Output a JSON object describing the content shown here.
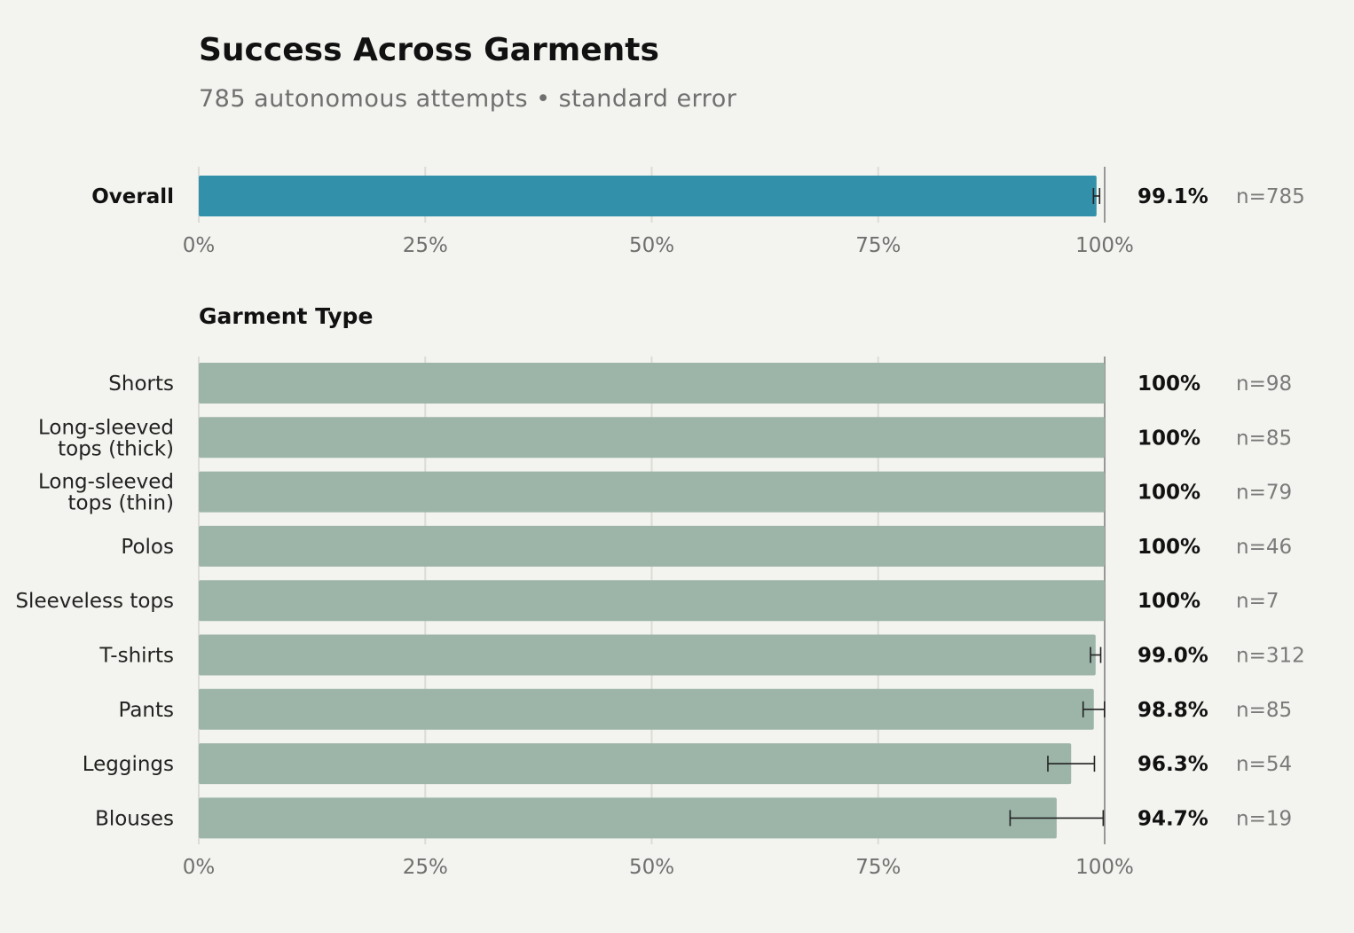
{
  "title": "Success Across Garments",
  "subtitle": "785 autonomous attempts • standard error",
  "colors": {
    "overall_bar": "#3390aa",
    "garment_bar": "#9db5a9",
    "grid": "#dcdcd6",
    "reference_line": "#7a7a7a",
    "error_bar": "#222222"
  },
  "chart_data": [
    {
      "type": "bar",
      "orientation": "horizontal",
      "section_label": "",
      "categories": [
        "Overall"
      ],
      "values": [
        99.1
      ],
      "error": [
        0.34
      ],
      "value_labels": [
        "99.1%"
      ],
      "n_labels": [
        "n=785"
      ],
      "xlim": [
        0,
        100
      ],
      "x_ticks": [
        "0%",
        "25%",
        "50%",
        "75%",
        "100%"
      ],
      "grid": true
    },
    {
      "type": "bar",
      "orientation": "horizontal",
      "section_label": "Garment Type",
      "categories": [
        "Shorts",
        "Long-sleeved tops (thick)",
        "Long-sleeved tops (thin)",
        "Polos",
        "Sleeveless tops",
        "T-shirts",
        "Pants",
        "Leggings",
        "Blouses"
      ],
      "category_lines": [
        [
          "Shorts"
        ],
        [
          "Long-sleeved",
          "tops (thick)"
        ],
        [
          "Long-sleeved",
          "tops (thin)"
        ],
        [
          "Polos"
        ],
        [
          "Sleeveless tops"
        ],
        [
          "T-shirts"
        ],
        [
          "Pants"
        ],
        [
          "Leggings"
        ],
        [
          "Blouses"
        ]
      ],
      "values": [
        100,
        100,
        100,
        100,
        100,
        99.0,
        98.8,
        96.3,
        94.7
      ],
      "error": [
        0,
        0,
        0,
        0,
        0,
        0.56,
        1.18,
        2.57,
        5.14
      ],
      "value_labels": [
        "100%",
        "100%",
        "100%",
        "100%",
        "100%",
        "99.0%",
        "98.8%",
        "96.3%",
        "94.7%"
      ],
      "n_labels": [
        "n=98",
        "n=85",
        "n=79",
        "n=46",
        "n=7",
        "n=312",
        "n=85",
        "n=54",
        "n=19"
      ],
      "xlim": [
        0,
        100
      ],
      "x_ticks": [
        "0%",
        "25%",
        "50%",
        "75%",
        "100%"
      ],
      "grid": true
    }
  ]
}
